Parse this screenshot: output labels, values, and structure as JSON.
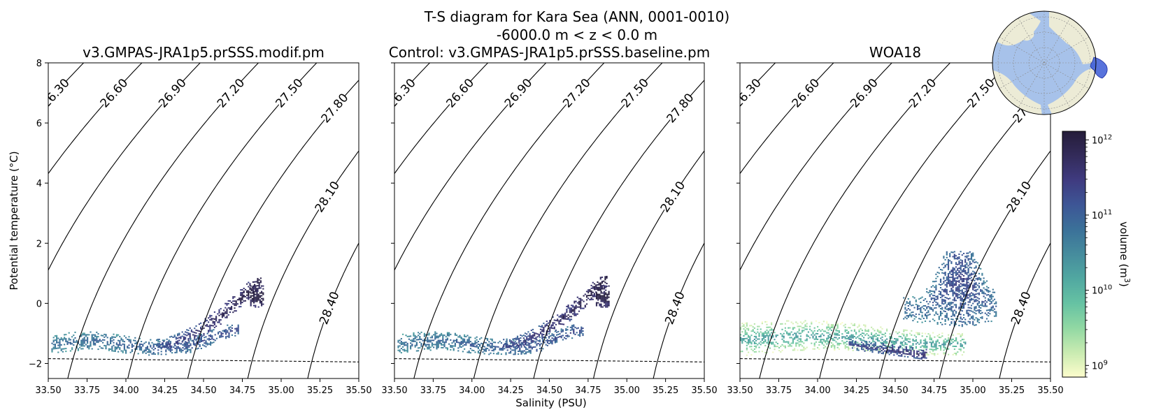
{
  "title": "T-S diagram for Kara Sea (ANN, 0001-0010)",
  "subtitle": "-6000.0 m < z < 0.0 m",
  "chart_data": {
    "type": "heatmap",
    "xlabel": "Salinity (PSU)",
    "ylabel": "Potential temperature ($^\\circ$C)",
    "ylabel_display": "Potential temperature (°C)",
    "xlim": [
      33.5,
      35.5
    ],
    "ylim": [
      -2.5,
      8
    ],
    "xticks": [
      "33.50",
      "33.75",
      "34.00",
      "34.25",
      "34.50",
      "34.75",
      "35.00",
      "35.25",
      "35.50"
    ],
    "xtick_values": [
      33.5,
      33.75,
      34.0,
      34.25,
      34.5,
      34.75,
      35.0,
      35.25,
      35.5
    ],
    "yticks": [
      "−2",
      "0",
      "2",
      "4",
      "6",
      "8"
    ],
    "ytick_values": [
      -2,
      0,
      2,
      4,
      6,
      8
    ],
    "density_contours": [
      {
        "label": "26.30",
        "value": 26.3
      },
      {
        "label": "26.60",
        "value": 26.6
      },
      {
        "label": "26.90",
        "value": 26.9
      },
      {
        "label": "27.20",
        "value": 27.2
      },
      {
        "label": "27.50",
        "value": 27.5
      },
      {
        "label": "27.80",
        "value": 27.8
      },
      {
        "label": "28.10",
        "value": 28.1
      },
      {
        "label": "28.40",
        "value": 28.4
      }
    ],
    "freezing_line": {
      "x": [
        33.5,
        35.5
      ],
      "y": [
        -1.84,
        -1.95
      ],
      "style": "dashed"
    },
    "colorbar": {
      "label": "volume (m$^3$)",
      "label_display": "volume (m",
      "label_sup": "3",
      "label_end": ")",
      "scale": "log",
      "range": [
        700000000.0,
        1300000000000.0
      ],
      "ticks": [
        {
          "base": "10",
          "exp": "9"
        },
        {
          "base": "10",
          "exp": "10"
        },
        {
          "base": "10",
          "exp": "11"
        },
        {
          "base": "10",
          "exp": "12"
        }
      ],
      "colors": [
        "#fdfdcc",
        "#c9ebb1",
        "#91d8a3",
        "#66c2a3",
        "#51a8a1",
        "#468c9d",
        "#3b7199",
        "#3d5696",
        "#3f3b80",
        "#332b5a",
        "#251d3a"
      ]
    },
    "panels": [
      {
        "title": "v3.GMPAS-JRA1p5.prSSS.modif.pm",
        "volume_distribution": [
          {
            "s": [
              33.52,
              34.72
            ],
            "t": [
              -1.65,
              -0.75
            ],
            "spine": "lowband",
            "level": 0.45
          },
          {
            "s": [
              34.2,
              34.87
            ],
            "t": [
              -1.4,
              0.85
            ],
            "spine": "tongue",
            "level": 0.6
          },
          {
            "s": [
              34.8,
              34.88
            ],
            "t": [
              -0.1,
              0.6
            ],
            "spine": "core",
            "level": 0.85
          }
        ]
      },
      {
        "title": "Control: v3.GMPAS-JRA1p5.prSSS.baseline.pm",
        "volume_distribution": [
          {
            "s": [
              33.52,
              34.72
            ],
            "t": [
              -1.65,
              -0.75
            ],
            "spine": "lowband",
            "level": 0.45
          },
          {
            "s": [
              34.2,
              34.87
            ],
            "t": [
              -1.4,
              0.9
            ],
            "spine": "tongue",
            "level": 0.6
          },
          {
            "s": [
              34.8,
              34.88
            ],
            "t": [
              -0.1,
              0.6
            ],
            "spine": "core",
            "level": 0.85
          }
        ]
      },
      {
        "title": "WOA18",
        "volume_distribution": [
          {
            "s": [
              33.5,
              34.95
            ],
            "t": [
              -1.75,
              -0.35
            ],
            "spine": "broad",
            "level": 0.3
          },
          {
            "s": [
              34.2,
              34.7
            ],
            "t": [
              -1.8,
              -1.1
            ],
            "spine": "descend",
            "level": 0.6
          },
          {
            "s": [
              34.55,
              35.15
            ],
            "t": [
              -1.2,
              1.7
            ],
            "spine": "plume",
            "level": 0.5
          }
        ]
      }
    ]
  },
  "inset_map": {
    "description_color_ocean": "#a7c2ea",
    "land_color": "#ecebd6",
    "region_color": "#3b5bd6"
  }
}
